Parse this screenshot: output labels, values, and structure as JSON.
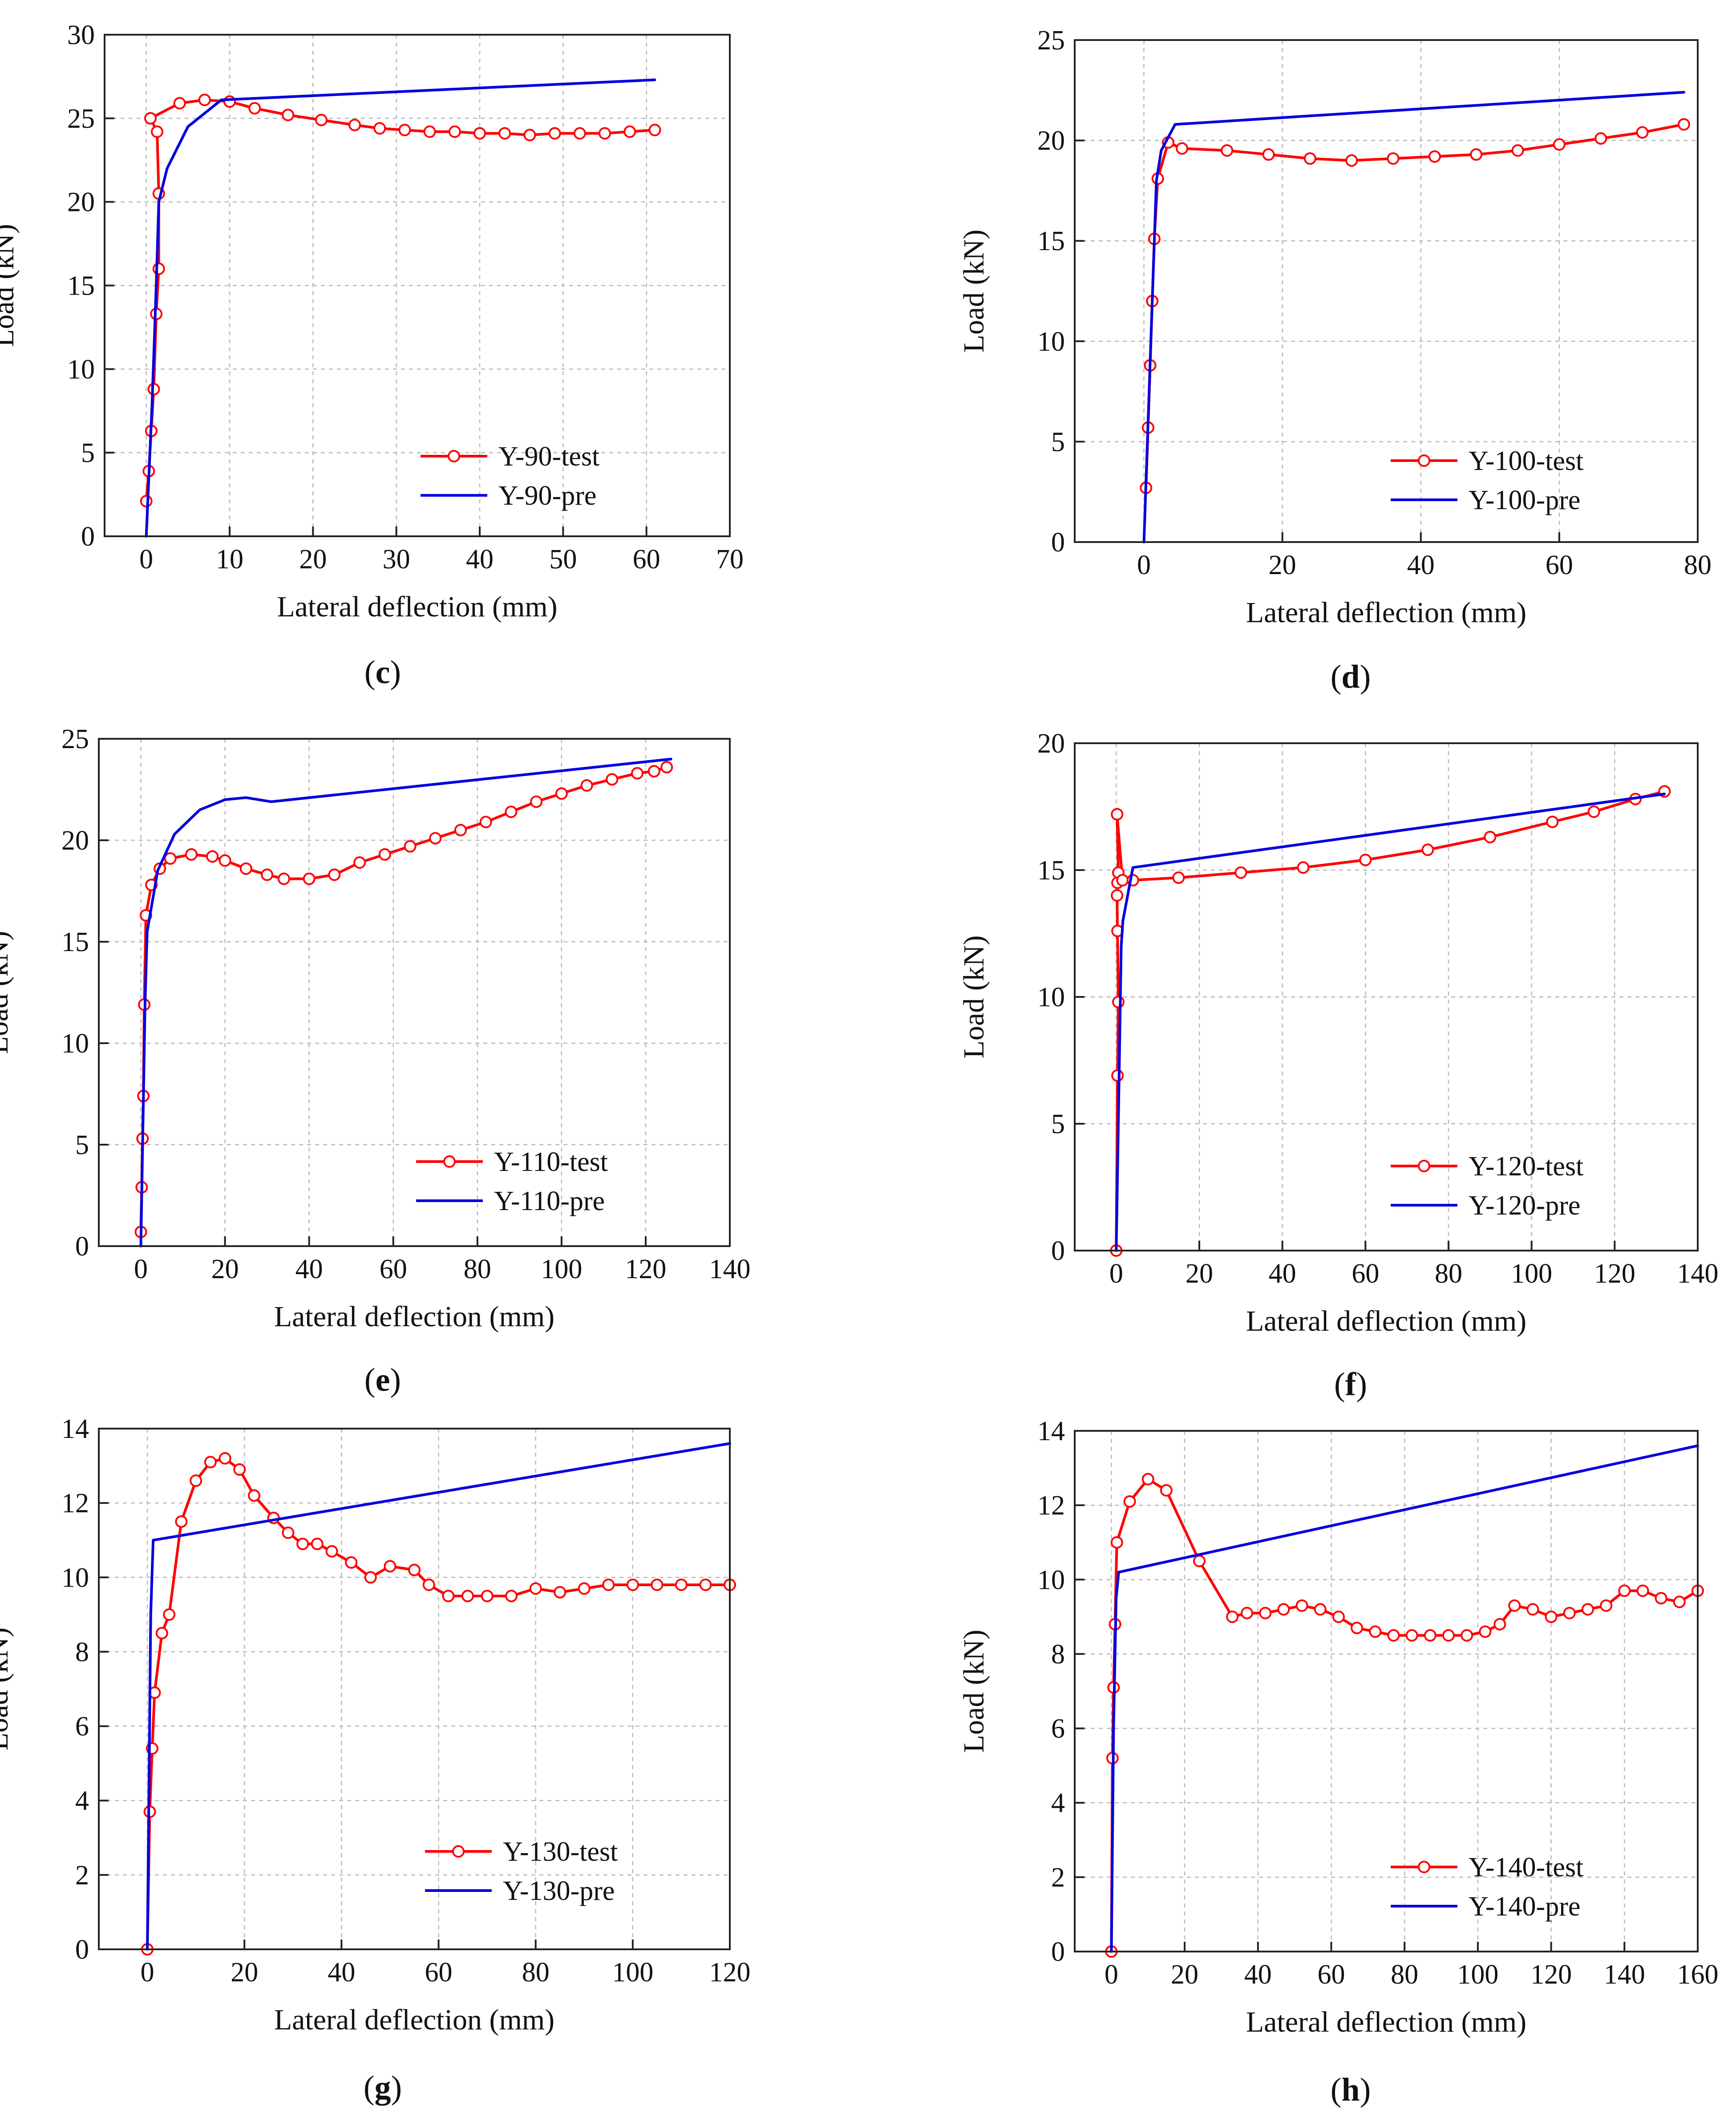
{
  "chart_data": [
    {
      "panel": "c",
      "type": "line",
      "xlabel": "Lateral deflection (mm)",
      "ylabel": "Load (kN)",
      "xlim": [
        -5,
        70
      ],
      "ylim": [
        0,
        30
      ],
      "xticks": [
        0,
        10,
        20,
        30,
        40,
        50,
        60,
        70
      ],
      "yticks": [
        0,
        5,
        10,
        15,
        20,
        25,
        30
      ],
      "grid": true,
      "legend": "bottom-right",
      "series": [
        {
          "name": "Y-90-test",
          "color": "#ff0000",
          "markers": true,
          "x": [
            0.0,
            0.3,
            0.6,
            0.9,
            1.2,
            1.5,
            1.5,
            1.3,
            0.5,
            4,
            7,
            10,
            13,
            17,
            21,
            25,
            28,
            31,
            34,
            37,
            40,
            43,
            46,
            49,
            52,
            55,
            58,
            61
          ],
          "y": [
            2.1,
            3.9,
            6.3,
            8.8,
            13.3,
            16.0,
            20.5,
            24.2,
            25.0,
            25.9,
            26.1,
            26.0,
            25.6,
            25.2,
            24.9,
            24.6,
            24.4,
            24.3,
            24.2,
            24.2,
            24.1,
            24.1,
            24.0,
            24.1,
            24.1,
            24.1,
            24.2,
            24.3
          ]
        },
        {
          "name": "Y-90-pre",
          "color": "#0000e0",
          "markers": false,
          "x": [
            0,
            0.7,
            1.2,
            1.5,
            2.5,
            5,
            9,
            61
          ],
          "y": [
            0,
            8,
            15,
            20,
            22,
            24.5,
            26.1,
            27.3
          ]
        }
      ]
    },
    {
      "panel": "d",
      "type": "line",
      "xlabel": "Lateral deflection (mm)",
      "ylabel": "Load (kN)",
      "xlim": [
        -10,
        80
      ],
      "ylim": [
        0,
        25
      ],
      "xticks": [
        0,
        20,
        40,
        60,
        80
      ],
      "yticks": [
        0,
        5,
        10,
        15,
        20,
        25
      ],
      "grid": true,
      "legend": "bottom-right",
      "series": [
        {
          "name": "Y-100-test",
          "color": "#ff0000",
          "markers": true,
          "x": [
            0.3,
            0.6,
            0.9,
            1.2,
            1.5,
            2.0,
            3.5,
            5.5,
            12,
            18,
            24,
            30,
            36,
            42,
            48,
            54,
            60,
            66,
            72,
            78
          ],
          "y": [
            2.7,
            5.7,
            8.8,
            12.0,
            15.1,
            18.1,
            19.9,
            19.6,
            19.5,
            19.3,
            19.1,
            19.0,
            19.1,
            19.2,
            19.3,
            19.5,
            19.8,
            20.1,
            20.4,
            20.8
          ],
          "markers_at": [
            0.3,
            0.6,
            0.9,
            1.2,
            1.5,
            2.0,
            3.5,
            5.5,
            18,
            24,
            30,
            36,
            40,
            45,
            49,
            52,
            55,
            58,
            61,
            64,
            67,
            70,
            73,
            76,
            78
          ]
        },
        {
          "name": "Y-100-pre",
          "color": "#0000e0",
          "markers": false,
          "x": [
            0,
            1,
            1.8,
            2.5,
            4.5,
            78
          ],
          "y": [
            0,
            10,
            18,
            19.5,
            20.8,
            22.4
          ]
        }
      ]
    },
    {
      "panel": "e",
      "type": "line",
      "xlabel": "Lateral deflection (mm)",
      "ylabel": "Load (kN)",
      "xlim": [
        -10,
        140
      ],
      "ylim": [
        0,
        25
      ],
      "xticks": [
        0,
        20,
        40,
        60,
        80,
        100,
        120,
        140
      ],
      "yticks": [
        0,
        5,
        10,
        15,
        20,
        25
      ],
      "grid": true,
      "legend": "bottom-right",
      "series": [
        {
          "name": "Y-110-test",
          "color": "#ff0000",
          "markers": true,
          "x": [
            0.0,
            0.2,
            0.4,
            0.6,
            0.8,
            1.2,
            2.5,
            4.5,
            7,
            12,
            17,
            20,
            25,
            30,
            34,
            40,
            46,
            52,
            58,
            64,
            70,
            76,
            82,
            88,
            94,
            100,
            106,
            112,
            118,
            122,
            125
          ],
          "y": [
            0.7,
            2.9,
            5.3,
            7.4,
            11.9,
            16.3,
            17.8,
            18.6,
            19.1,
            19.3,
            19.2,
            19.0,
            18.6,
            18.3,
            18.1,
            18.1,
            18.3,
            18.9,
            19.3,
            19.7,
            20.1,
            20.5,
            20.9,
            21.4,
            21.9,
            22.3,
            22.7,
            23.0,
            23.3,
            23.4,
            23.6
          ]
        },
        {
          "name": "Y-110-pre",
          "color": "#0000e0",
          "markers": false,
          "x": [
            0,
            1,
            1.5,
            4,
            8,
            14,
            20,
            25,
            28,
            31,
            126
          ],
          "y": [
            0,
            12,
            15.5,
            18.5,
            20.3,
            21.5,
            22.0,
            22.1,
            22.0,
            21.9,
            24.0
          ]
        }
      ]
    },
    {
      "panel": "f",
      "type": "line",
      "xlabel": "Lateral deflection (mm)",
      "ylabel": "Load (kN)",
      "xlim": [
        -10,
        140
      ],
      "ylim": [
        0,
        20
      ],
      "xticks": [
        0,
        20,
        40,
        60,
        80,
        100,
        120,
        140
      ],
      "yticks": [
        0,
        5,
        10,
        15,
        20
      ],
      "grid": true,
      "legend": "bottom-right",
      "series": [
        {
          "name": "Y-120-test",
          "color": "#ff0000",
          "markers": true,
          "x": [
            0.0,
            0.3,
            0.5,
            0.3,
            0.2,
            0.3,
            0.5,
            0.2,
            1.5,
            4,
            15,
            30,
            45,
            60,
            75,
            90,
            105,
            115,
            125,
            132
          ],
          "y": [
            0.0,
            6.9,
            9.8,
            12.6,
            14.0,
            14.5,
            14.9,
            17.2,
            14.6,
            14.6,
            14.7,
            14.9,
            15.1,
            15.4,
            15.8,
            16.3,
            16.9,
            17.3,
            17.8,
            18.1
          ]
        },
        {
          "name": "Y-120-pre",
          "color": "#0000e0",
          "markers": false,
          "x": [
            0,
            0.7,
            1.2,
            1.6,
            4,
            132
          ],
          "y": [
            0,
            7,
            12,
            13,
            15.1,
            18.0
          ]
        }
      ]
    },
    {
      "panel": "g",
      "type": "line",
      "xlabel": "Lateral deflection (mm)",
      "ylabel": "Load (kN)",
      "xlim": [
        -10,
        120
      ],
      "ylim": [
        0,
        14
      ],
      "xticks": [
        0,
        20,
        40,
        60,
        80,
        100,
        120
      ],
      "yticks": [
        0,
        2,
        4,
        6,
        8,
        10,
        12,
        14
      ],
      "grid": true,
      "legend": "bottom-right",
      "series": [
        {
          "name": "Y-130-test",
          "color": "#ff0000",
          "markers": true,
          "x": [
            0.0,
            0.5,
            1.0,
            1.5,
            3.0,
            4.5,
            7,
            10,
            13,
            16,
            19,
            22,
            26,
            29,
            32,
            35,
            38,
            42,
            46,
            50,
            55,
            58,
            62,
            66,
            70,
            75,
            80,
            85,
            90,
            95,
            100,
            105,
            110,
            115,
            120
          ],
          "y": [
            0.0,
            3.7,
            5.4,
            6.9,
            8.5,
            9.0,
            11.5,
            12.6,
            13.1,
            13.2,
            12.9,
            12.2,
            11.6,
            11.2,
            10.9,
            10.9,
            10.7,
            10.4,
            10.0,
            10.3,
            10.2,
            9.8,
            9.5,
            9.5,
            9.5,
            9.5,
            9.7,
            9.6,
            9.7,
            9.8,
            9.8,
            9.8,
            9.8,
            9.8,
            9.8
          ]
        },
        {
          "name": "Y-130-pre",
          "color": "#0000e0",
          "markers": false,
          "x": [
            0,
            0.7,
            1.2,
            120
          ],
          "y": [
            0,
            9,
            11.0,
            13.6
          ]
        }
      ]
    },
    {
      "panel": "h",
      "type": "line",
      "xlabel": "Lateral deflection (mm)",
      "ylabel": "Load (kN)",
      "xlim": [
        -10,
        160
      ],
      "ylim": [
        0,
        14
      ],
      "xticks": [
        0,
        20,
        40,
        60,
        80,
        100,
        120,
        140,
        160
      ],
      "yticks": [
        0,
        2,
        4,
        6,
        8,
        10,
        12,
        14
      ],
      "grid": true,
      "legend": "bottom-right",
      "series": [
        {
          "name": "Y-140-test",
          "color": "#ff0000",
          "markers": true,
          "x": [
            0.0,
            0.3,
            0.6,
            1.0,
            1.5,
            5,
            10,
            15,
            24,
            33,
            37,
            42,
            47,
            52,
            57,
            62,
            67,
            72,
            77,
            82,
            87,
            92,
            97,
            102,
            106,
            110,
            115,
            120,
            125,
            130,
            135,
            140,
            145,
            150,
            155,
            160
          ],
          "y": [
            0.0,
            5.2,
            7.1,
            8.8,
            11.0,
            12.1,
            12.7,
            12.4,
            10.5,
            9.0,
            9.1,
            9.1,
            9.2,
            9.3,
            9.2,
            9.0,
            8.7,
            8.6,
            8.5,
            8.5,
            8.5,
            8.5,
            8.5,
            8.6,
            8.8,
            9.3,
            9.2,
            9.0,
            9.1,
            9.2,
            9.3,
            9.7,
            9.7,
            9.5,
            9.4,
            9.7
          ]
        },
        {
          "name": "Y-140-pre",
          "color": "#0000e0",
          "markers": false,
          "x": [
            0,
            0.6,
            1.3,
            2.0,
            160
          ],
          "y": [
            0,
            6,
            9.5,
            10.2,
            13.6
          ]
        }
      ]
    }
  ],
  "panel_labels": [
    {
      "open": "(",
      "letter": "c",
      "close": ")"
    },
    {
      "open": "(",
      "letter": "d",
      "close": ")"
    },
    {
      "open": "(",
      "letter": "e",
      "close": ")"
    },
    {
      "open": "(",
      "letter": "f",
      "close": ")"
    },
    {
      "open": "(",
      "letter": "g",
      "close": ")"
    },
    {
      "open": "(",
      "letter": "h",
      "close": ")"
    }
  ]
}
